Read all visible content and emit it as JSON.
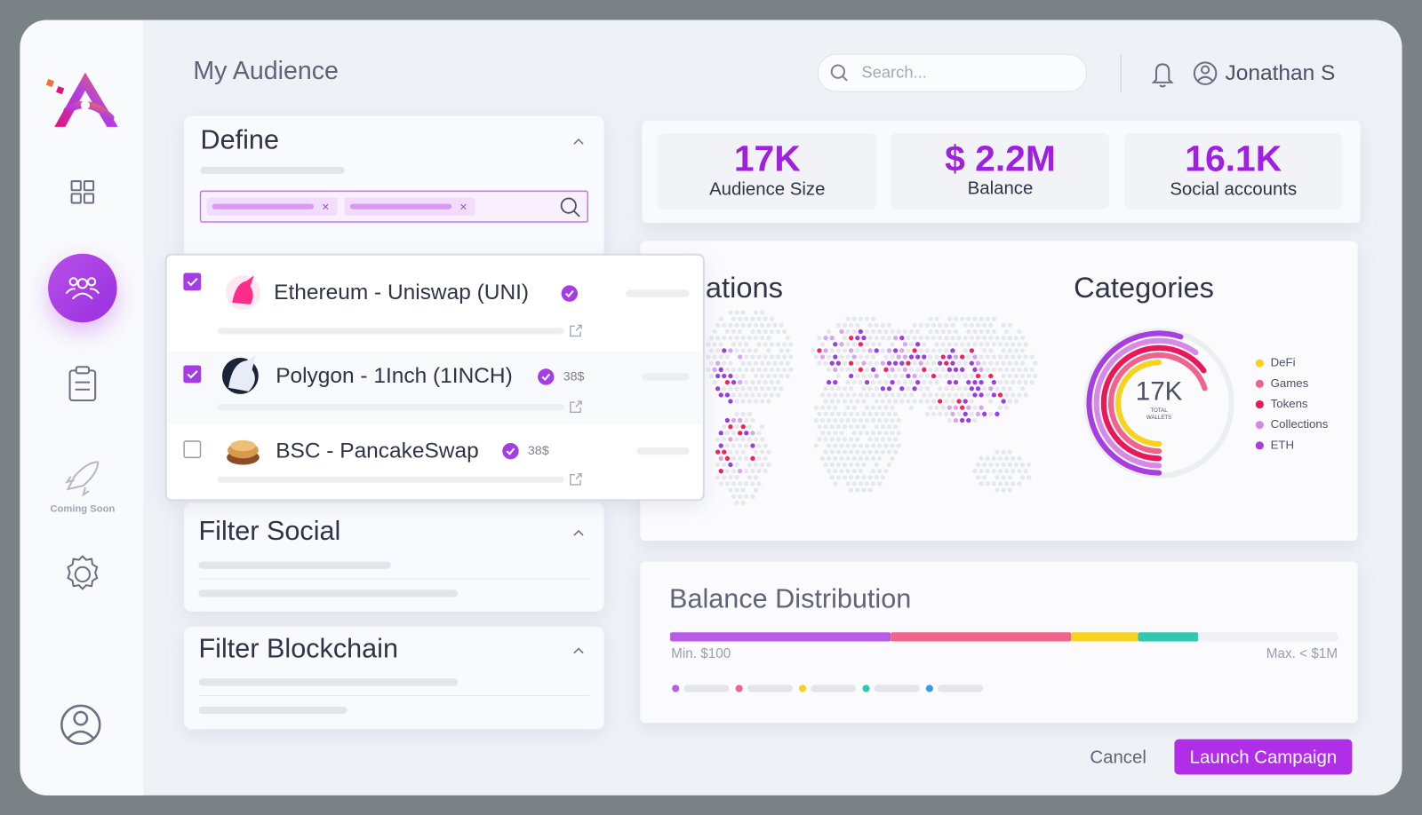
{
  "sidebar": {
    "coming_soon": "Coming Soon"
  },
  "header": {
    "title": "My Audience",
    "search_placeholder": "Search...",
    "user": "Jonathan S"
  },
  "define": {
    "title": "Define"
  },
  "dropdown": {
    "items": [
      {
        "name": "Ethereum - Uniswap (UNI)",
        "checked": true
      },
      {
        "name": "Polygon - 1Inch (1INCH)",
        "price": "38$",
        "checked": true
      },
      {
        "name": "BSC - PancakeSwap",
        "price": "38$",
        "checked": false
      }
    ]
  },
  "filter_social": {
    "title": "Filter Social"
  },
  "filter_blockchain": {
    "title": "Filter Blockchain"
  },
  "stats": [
    {
      "value": "17K",
      "label": "Audience Size"
    },
    {
      "value": "$ 2.2M",
      "label": "Balance"
    },
    {
      "value": "16.1K",
      "label": "Social accounts"
    }
  ],
  "locations": {
    "title": "ations"
  },
  "categories": {
    "title": "Categories",
    "total": "17K",
    "total_label_lines": [
      "TOTAL",
      "WALLETS"
    ],
    "items": [
      {
        "name": "DeFi",
        "color": "#f7d21e",
        "share": 50
      },
      {
        "name": "Games",
        "color": "#f0648c",
        "share": 70
      },
      {
        "name": "Tokens",
        "color": "#e8195a",
        "share": 65
      },
      {
        "name": "Collections",
        "color": "#d58ae8",
        "share": 60
      },
      {
        "name": "ETH",
        "color": "#a93ee0",
        "share": 55
      }
    ]
  },
  "balance": {
    "title": "Balance Distribution",
    "min_label": "Min. $100",
    "max_label": "Max. < $1M",
    "segments": [
      {
        "color": "#b65ce6",
        "share": 33
      },
      {
        "color": "#f0648c",
        "share": 27
      },
      {
        "color": "#f7d21e",
        "share": 10
      },
      {
        "color": "#2ec9b0",
        "share": 9
      }
    ],
    "legend_colors": [
      "#b65ce6",
      "#f0648c",
      "#f7d21e",
      "#2ec9b0",
      "#3a9be8"
    ]
  },
  "actions": {
    "cancel": "Cancel",
    "launch": "Launch Campaign"
  }
}
